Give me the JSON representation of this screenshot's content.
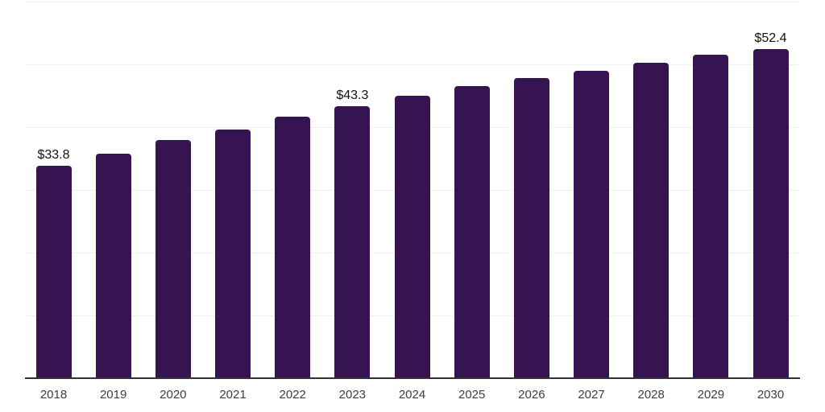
{
  "chart_data": {
    "type": "bar",
    "title": "",
    "xlabel": "",
    "ylabel": "",
    "categories": [
      "2018",
      "2019",
      "2020",
      "2021",
      "2022",
      "2023",
      "2024",
      "2025",
      "2026",
      "2027",
      "2028",
      "2029",
      "2030"
    ],
    "values": [
      33.8,
      35.8,
      37.9,
      39.6,
      41.7,
      43.3,
      45.0,
      46.5,
      47.8,
      49.0,
      50.3,
      51.5,
      52.4
    ],
    "value_labels": {
      "2018": "$33.8",
      "2023": "$43.3",
      "2030": "$52.4"
    },
    "ylim": [
      0,
      60
    ],
    "gridline_step": 10,
    "grid": true,
    "legend": false,
    "y_axis_tick_labels_visible": false,
    "colors": {
      "bar": "#361351",
      "axis_line": "#333333",
      "gridline": "#f1f1f1",
      "value_label": "#111111",
      "tick_label": "#3d3d3d",
      "background": "#ffffff"
    }
  }
}
